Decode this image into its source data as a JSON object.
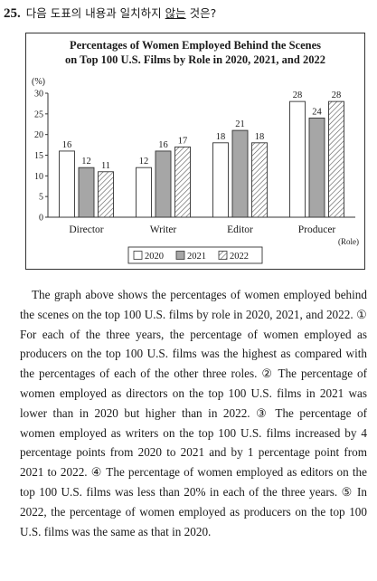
{
  "question": {
    "number": "25.",
    "text_before": "다음 도표의 내용과 일치하지 ",
    "text_underlined": "않는",
    "text_after": " 것은?"
  },
  "chart_data": {
    "type": "bar",
    "title_line1": "Percentages of Women Employed Behind the Scenes",
    "title_line2": "on Top 100 U.S. Films by Role in 2020, 2021, and 2022",
    "y_unit": "(%)",
    "x_unit": "(Role)",
    "categories": [
      "Director",
      "Writer",
      "Editor",
      "Producer"
    ],
    "y_ticks": [
      "0",
      "5",
      "10",
      "15",
      "20",
      "25",
      "30"
    ],
    "ylim": [
      0,
      30
    ],
    "legend_position": "bottom",
    "series": [
      {
        "name": "2020",
        "values": [
          16,
          12,
          18,
          28
        ],
        "fill": "#ffffff"
      },
      {
        "name": "2021",
        "values": [
          12,
          16,
          21,
          24
        ],
        "fill": "#a6a6a6"
      },
      {
        "name": "2022",
        "values": [
          11,
          17,
          18,
          28
        ],
        "fill": "hatch"
      }
    ]
  },
  "passage": "The graph above shows the percentages of women employed behind the scenes on the top 100 U.S. films by role in 2020, 2021, and 2022. ① For each of the three years, the percentage of women employed as producers on the top 100 U.S. films was the highest as compared with the percentages of each of the other three roles. ② The percentage of women employed as directors on the top 100 U.S. films in 2021 was lower than in 2020 but higher than in 2022. ③ The percentage of women employed as writers on the top 100 U.S. films increased by 4 percentage points from 2020 to 2021 and by 1 percentage point from 2021 to 2022. ④ The percentage of women employed as editors on the top 100 U.S. films was less than 20% in each of the three years. ⑤ In 2022, the percentage of women employed as producers on the top 100 U.S. films was the same as that in 2020."
}
